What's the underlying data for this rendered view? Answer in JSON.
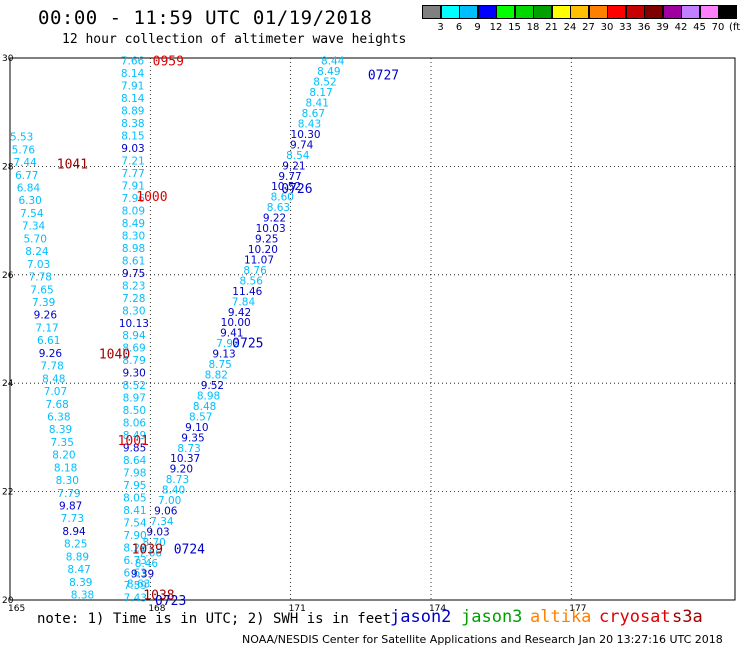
{
  "header": {
    "title": "00:00 - 11:59 UTC 01/19/2018",
    "subtitle": "12 hour collection of altimeter wave heights"
  },
  "legend": {
    "colors": [
      "#808080",
      "#00ffff",
      "#00bfff",
      "#0000ff",
      "#00ff00",
      "#00d800",
      "#00a000",
      "#ffff00",
      "#ffc000",
      "#ff8000",
      "#ff0000",
      "#c80000",
      "#800000",
      "#a000a0",
      "#c080ff",
      "#ff80ff",
      "#000000"
    ],
    "labels": [
      "3",
      "6",
      "9",
      "12",
      "15",
      "18",
      "21",
      "24",
      "27",
      "30",
      "33",
      "36",
      "39",
      "42",
      "45",
      "70",
      "(ft)"
    ]
  },
  "footer": {
    "note": "note: 1) Time is in UTC; 2) SWH is in feet",
    "missions": [
      {
        "name": "jason2",
        "color": "#0000c8"
      },
      {
        "name": "jason3",
        "color": "#00a000"
      },
      {
        "name": "altika",
        "color": "#ff8000"
      },
      {
        "name": "cryosat",
        "color": "#e00000"
      },
      {
        "name": "s3a",
        "color": "#a00000"
      }
    ],
    "credit": "NOAA/NESDIS Center for Satellite Applications and Research   Jan 20 13:27:16 UTC 2018"
  },
  "chart_data": {
    "type": "scatter",
    "x_ticks": [
      "165",
      "168",
      "171",
      "174",
      "177"
    ],
    "y_ticks": [
      "30",
      "28",
      "26",
      "24",
      "22",
      "20"
    ],
    "xlim": [
      165,
      180.5
    ],
    "ylim": [
      20,
      30
    ],
    "grid": true,
    "track_a": {
      "lon_start": 167.62,
      "lat_start": 29.95,
      "lon_end": 167.68,
      "lat_end": 20.05,
      "values": [
        "7.66",
        "8.14",
        "7.91",
        "8.14",
        "8.89",
        "8.38",
        "8.15",
        "9.03",
        "7.21",
        "7.77",
        "7.91",
        "7.96",
        "8.09",
        "8.49",
        "8.30",
        "8.98",
        "8.61",
        "9.75",
        "8.23",
        "7.28",
        "8.30",
        "10.13",
        "8.94",
        "8.69",
        "8.79",
        "9.30",
        "8.52",
        "8.97",
        "8.50",
        "8.06",
        "8.49",
        "9.85",
        "8.64",
        "7.98",
        "7.95",
        "8.05",
        "8.41",
        "7.54",
        "7.90",
        "8.28",
        "6.73",
        "6.63",
        "7.59",
        "7.43"
      ],
      "colors": [
        "#00bfff",
        "#00bfff",
        "#00bfff",
        "#00bfff",
        "#00bfff",
        "#00bfff",
        "#00bfff",
        "#0000c8",
        "#00bfff",
        "#00bfff",
        "#00bfff",
        "#00bfff",
        "#00bfff",
        "#00bfff",
        "#00bfff",
        "#00bfff",
        "#00bfff",
        "#0000c8",
        "#00bfff",
        "#00bfff",
        "#00bfff",
        "#0000c8",
        "#00bfff",
        "#00bfff",
        "#00bfff",
        "#0000c8",
        "#00bfff",
        "#00bfff",
        "#00bfff",
        "#00bfff",
        "#00bfff",
        "#0000c8",
        "#00bfff",
        "#00bfff",
        "#00bfff",
        "#00bfff",
        "#00bfff",
        "#00bfff",
        "#00bfff",
        "#00bfff",
        "#00bfff",
        "#00bfff",
        "#00bfff",
        "#00bfff"
      ]
    },
    "track_b": {
      "lon_start": 165.25,
      "lat_start": 28.55,
      "lon_end": 166.55,
      "lat_end": 20.1,
      "values": [
        "5.53",
        "5.76",
        "7.44",
        "6.77",
        "6.84",
        "6.30",
        "7.54",
        "7.34",
        "5.70",
        "8.24",
        "7.03",
        "7.78",
        "7.65",
        "7.39",
        "9.26",
        "7.17",
        "6.61",
        "9.26",
        "7.78",
        "8.48",
        "7.07",
        "7.68",
        "6.38",
        "8.39",
        "7.35",
        "8.20",
        "8.18",
        "8.30",
        "7.79",
        "9.87",
        "7.73",
        "8.94",
        "8.25",
        "8.89",
        "8.47",
        "8.39",
        "8.38"
      ],
      "colors": [
        "#00bfff",
        "#00bfff",
        "#00bfff",
        "#00bfff",
        "#00bfff",
        "#00bfff",
        "#00bfff",
        "#00bfff",
        "#00bfff",
        "#00bfff",
        "#00bfff",
        "#00bfff",
        "#00bfff",
        "#00bfff",
        "#0000c8",
        "#00bfff",
        "#00bfff",
        "#0000c8",
        "#00bfff",
        "#00bfff",
        "#00bfff",
        "#00bfff",
        "#00bfff",
        "#00bfff",
        "#00bfff",
        "#00bfff",
        "#00bfff",
        "#00bfff",
        "#00bfff",
        "#0000c8",
        "#00bfff",
        "#0000c8",
        "#00bfff",
        "#00bfff",
        "#00bfff",
        "#00bfff",
        "#00bfff"
      ]
    },
    "track_c": {
      "lon_start": 171.9,
      "lat_start": 29.95,
      "lon_end": 167.75,
      "lat_end": 20.3,
      "values": [
        "8.44",
        "8.49",
        "8.52",
        "8.17",
        "8.41",
        "8.67",
        "8.43",
        "10.30",
        "9.74",
        "8.54",
        "9.21",
        "9.77",
        "10.52",
        "8.60",
        "8.63",
        "9.22",
        "10.03",
        "9.25",
        "10.20",
        "11.07",
        "8.76",
        "8.56",
        "11.46",
        "7.84",
        "9.42",
        "10.00",
        "9.41",
        "7.92",
        "9.13",
        "8.75",
        "8.82",
        "9.52",
        "8.98",
        "8.48",
        "8.57",
        "9.10",
        "9.35",
        "8.73",
        "10.37",
        "9.20",
        "8.73",
        "8.40",
        "7.00",
        "9.06",
        "7.34",
        "9.03",
        "8.70",
        "7.66",
        "8.46",
        "9.39",
        "8.63"
      ],
      "colors": [
        "#00bfff",
        "#00bfff",
        "#00bfff",
        "#00bfff",
        "#00bfff",
        "#00bfff",
        "#00bfff",
        "#0000c8",
        "#0000c8",
        "#00bfff",
        "#0000c8",
        "#0000c8",
        "#0000c8",
        "#00bfff",
        "#00bfff",
        "#0000c8",
        "#0000c8",
        "#0000c8",
        "#0000c8",
        "#0000c8",
        "#00bfff",
        "#00bfff",
        "#0000c8",
        "#00bfff",
        "#0000c8",
        "#0000c8",
        "#0000c8",
        "#00bfff",
        "#0000c8",
        "#00bfff",
        "#00bfff",
        "#0000c8",
        "#00bfff",
        "#00bfff",
        "#00bfff",
        "#0000c8",
        "#0000c8",
        "#00bfff",
        "#0000c8",
        "#0000c8",
        "#00bfff",
        "#00bfff",
        "#00bfff",
        "#0000c8",
        "#00bfff",
        "#0000c8",
        "#00bfff",
        "#00bfff",
        "#00bfff",
        "#0000c8",
        "#00bfff"
      ]
    },
    "time_labels": [
      {
        "text": "0959",
        "lon": 168.05,
        "lat": 29.95,
        "color": "#e00000"
      },
      {
        "text": "1000",
        "lon": 167.7,
        "lat": 27.45,
        "color": "#e00000"
      },
      {
        "text": "1001",
        "lon": 167.3,
        "lat": 22.95,
        "color": "#e00000"
      },
      {
        "text": "1041",
        "lon": 166.0,
        "lat": 28.05,
        "color": "#a00000"
      },
      {
        "text": "1040",
        "lon": 166.9,
        "lat": 24.55,
        "color": "#a00000"
      },
      {
        "text": "1039",
        "lon": 167.6,
        "lat": 20.95,
        "color": "#a00000"
      },
      {
        "text": "1038",
        "lon": 167.85,
        "lat": 20.1,
        "color": "#a00000"
      },
      {
        "text": "0727",
        "lon": 172.65,
        "lat": 29.7,
        "color": "#0000c8"
      },
      {
        "text": "0726",
        "lon": 170.8,
        "lat": 27.6,
        "color": "#0000c8"
      },
      {
        "text": "0725",
        "lon": 169.75,
        "lat": 24.75,
        "color": "#0000c8"
      },
      {
        "text": "0724",
        "lon": 168.5,
        "lat": 20.95,
        "color": "#0000c8"
      },
      {
        "text": "0723",
        "lon": 168.1,
        "lat": 20.0,
        "color": "#0000c8"
      }
    ]
  }
}
